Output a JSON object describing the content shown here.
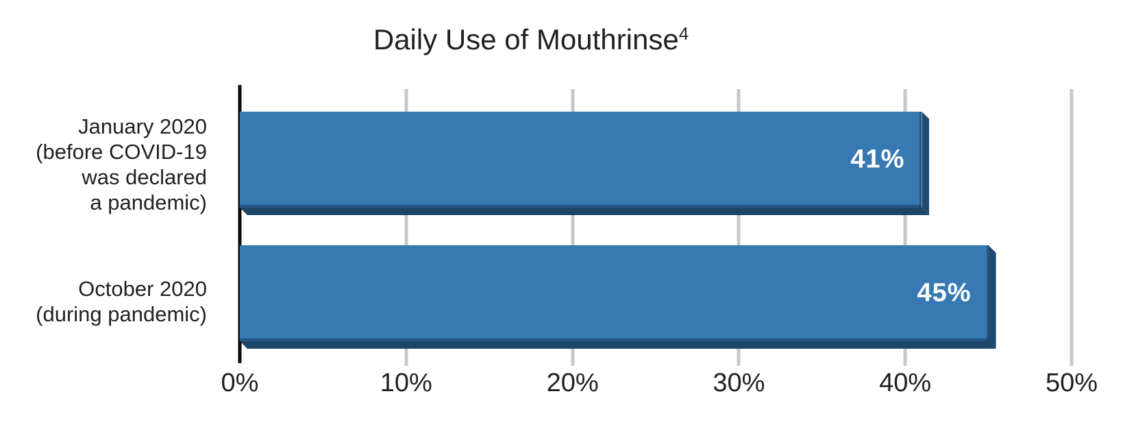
{
  "title": {
    "text": "Daily Use of Mouthrinse",
    "superscript": "4"
  },
  "chart_data": {
    "type": "bar",
    "orientation": "horizontal",
    "title": "Daily Use of Mouthrinse⁴",
    "xlabel": "",
    "ylabel": "",
    "xlim": [
      0,
      50
    ],
    "grid": "vertical gridlines every 10%",
    "legend": "none",
    "categories": [
      "January 2020 (before COVID-19 was declared a pandemic)",
      "October 2020 (during pandemic)"
    ],
    "values": [
      41,
      45
    ],
    "bars": [
      {
        "label_lines": [
          "January 2020",
          "(before COVID-19",
          "was declared",
          "a pandemic)"
        ],
        "value": 41,
        "value_label": "41%"
      },
      {
        "label_lines": [
          "October 2020",
          "(during pandemic)"
        ],
        "value": 45,
        "value_label": "45%"
      }
    ],
    "xticks": [
      {
        "value": 0,
        "label": "0%"
      },
      {
        "value": 10,
        "label": "10%"
      },
      {
        "value": 20,
        "label": "20%"
      },
      {
        "value": 30,
        "label": "30%"
      },
      {
        "value": 40,
        "label": "40%"
      },
      {
        "value": 50,
        "label": "50%"
      }
    ],
    "colors": {
      "bar": "#3779B3",
      "bar_shadow": "#1B4668",
      "bar_side": "#1D4A70",
      "gridline": "#C7C7C7",
      "axis_line": "#0B0B0B",
      "value_text": "#FFFFFF",
      "label_text": "#231F20"
    }
  }
}
